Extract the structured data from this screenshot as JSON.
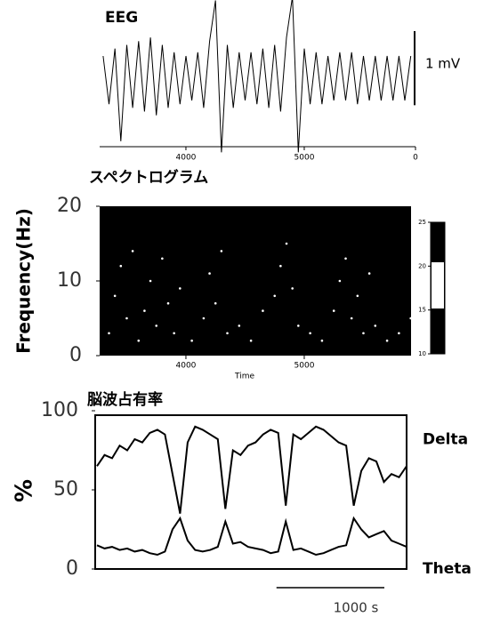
{
  "chart_data": [
    {
      "type": "line",
      "title": "EEG",
      "x": [
        3300,
        3350,
        3400,
        3450,
        3500,
        3550,
        3600,
        3650,
        3700,
        3750,
        3800,
        3850,
        3900,
        3950,
        4000,
        4050,
        4100,
        4150,
        4200,
        4250,
        4300,
        4350,
        4400,
        4450,
        4500,
        4550,
        4600,
        4650,
        4700,
        4750,
        4800,
        4850,
        4900,
        4950,
        5000,
        5050,
        5100,
        5150,
        5200,
        5250,
        5300,
        5350,
        5400,
        5450,
        5500,
        5550,
        5600,
        5650,
        5700,
        5750,
        5800,
        5850,
        5900
      ],
      "values": [
        0.3,
        -0.35,
        0.4,
        -0.85,
        0.45,
        -0.4,
        0.5,
        -0.45,
        0.55,
        -0.5,
        0.45,
        -0.4,
        0.35,
        -0.35,
        0.3,
        -0.3,
        0.35,
        -0.4,
        0.5,
        1.05,
        -1.0,
        0.45,
        -0.4,
        0.35,
        -0.3,
        0.35,
        -0.35,
        0.4,
        -0.4,
        0.45,
        -0.45,
        0.55,
        1.1,
        -1.0,
        0.4,
        -0.35,
        0.35,
        -0.35,
        0.3,
        -0.3,
        0.35,
        -0.3,
        0.35,
        -0.35,
        0.3,
        -0.3,
        0.3,
        -0.3,
        0.3,
        -0.3,
        0.3,
        -0.3,
        0.3
      ],
      "color": "#000000",
      "xlim": [
        3271,
        5940
      ],
      "xticks": [
        4000,
        5000,
        {
          "value": 5940,
          "label": "0"
        }
      ],
      "ylim": [
        -0.9,
        0.9
      ],
      "scale_bar": {
        "value": 1,
        "label": "1 mV"
      }
    },
    {
      "type": "scatter",
      "title": "スペクトログラム",
      "x_label": "Time",
      "y_label": "Frequency(Hz)",
      "x": [
        3350,
        3400,
        3450,
        3500,
        3550,
        3600,
        3650,
        3700,
        3750,
        3800,
        3850,
        3900,
        3950,
        4050,
        4150,
        4200,
        4250,
        4300,
        4350,
        4450,
        4550,
        4650,
        4750,
        4800,
        4850,
        4900,
        4950,
        5050,
        5150,
        5250,
        5300,
        5350,
        5400,
        5450,
        5500,
        5550,
        5600,
        5700,
        5800,
        5900
      ],
      "values": [
        3,
        8,
        12,
        5,
        14,
        2,
        6,
        10,
        4,
        13,
        7,
        3,
        9,
        2,
        5,
        11,
        7,
        14,
        3,
        4,
        2,
        6,
        8,
        12,
        15,
        9,
        4,
        3,
        2,
        6,
        10,
        13,
        5,
        8,
        3,
        11,
        4,
        2,
        3,
        5
      ],
      "color": "#ffffff",
      "xlim": [
        3271,
        5940
      ],
      "xticks": [
        4000,
        5000
      ],
      "ylim": [
        0,
        20
      ],
      "yticks": [
        0,
        10,
        20
      ],
      "colorbar": {
        "lim": [
          10,
          25
        ],
        "ticks": [
          10,
          15,
          20,
          25
        ]
      }
    },
    {
      "type": "line",
      "title": "脳波占有率",
      "y_label": "%",
      "x": [
        0,
        70,
        140,
        210,
        280,
        350,
        420,
        490,
        560,
        630,
        700,
        770,
        840,
        910,
        980,
        1050,
        1120,
        1190,
        1260,
        1330,
        1400,
        1470,
        1540,
        1610,
        1680,
        1750,
        1820,
        1890,
        1960,
        2030,
        2100,
        2170,
        2240,
        2310,
        2380,
        2450,
        2520,
        2590,
        2660,
        2730,
        2800,
        2870
      ],
      "series": [
        {
          "name": "Delta",
          "color": "#000000",
          "values": [
            65,
            72,
            70,
            78,
            75,
            82,
            80,
            86,
            88,
            85,
            60,
            35,
            80,
            90,
            88,
            85,
            82,
            38,
            75,
            72,
            78,
            80,
            85,
            88,
            86,
            40,
            85,
            82,
            86,
            90,
            88,
            84,
            80,
            78,
            40,
            62,
            70,
            68,
            55,
            60,
            58,
            65
          ]
        },
        {
          "name": "Theta",
          "color": "#000000",
          "values": [
            15,
            13,
            14,
            12,
            13,
            11,
            12,
            10,
            9,
            11,
            25,
            32,
            18,
            12,
            11,
            12,
            14,
            30,
            16,
            17,
            14,
            13,
            12,
            10,
            11,
            30,
            12,
            13,
            11,
            9,
            10,
            12,
            14,
            15,
            32,
            25,
            20,
            22,
            24,
            18,
            16,
            14
          ]
        }
      ],
      "xlim": [
        0,
        2870
      ],
      "ylim": [
        0,
        100
      ],
      "yticks": [
        0,
        50,
        100
      ],
      "scale_bar": {
        "value": 1000,
        "label": "1000 s"
      }
    }
  ]
}
